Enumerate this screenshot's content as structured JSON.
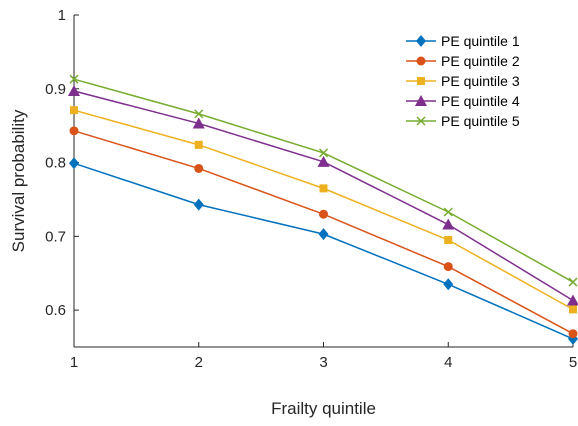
{
  "chart_data": {
    "type": "line",
    "x": [
      1,
      2,
      3,
      4,
      5
    ],
    "xticks": [
      "1",
      "2",
      "3",
      "4",
      "5"
    ],
    "yticks": [
      "0.6",
      "0.7",
      "0.8",
      "0.9",
      "1"
    ],
    "xlabel": "Frailty quintile",
    "ylabel": "Survival probability",
    "xlim": [
      1,
      5
    ],
    "ylim": [
      0.55,
      1.0
    ],
    "grid": false,
    "legend_position": "top-right",
    "series": [
      {
        "name": "PE quintile 1",
        "color": "#0072BD",
        "marker": "diamond",
        "values": [
          0.799,
          0.743,
          0.703,
          0.635,
          0.561
        ]
      },
      {
        "name": "PE quintile 2",
        "color": "#D95319",
        "marker": "circle",
        "values": [
          0.843,
          0.792,
          0.73,
          0.659,
          0.568
        ]
      },
      {
        "name": "PE quintile 3",
        "color": "#EDB120",
        "marker": "square",
        "values": [
          0.871,
          0.824,
          0.765,
          0.695,
          0.601
        ]
      },
      {
        "name": "PE quintile 4",
        "color": "#7E2F8E",
        "marker": "triangle",
        "values": [
          0.897,
          0.853,
          0.801,
          0.716,
          0.613
        ]
      },
      {
        "name": "PE quintile 5",
        "color": "#77AC30",
        "marker": "x",
        "values": [
          0.913,
          0.866,
          0.813,
          0.733,
          0.638
        ]
      }
    ]
  }
}
